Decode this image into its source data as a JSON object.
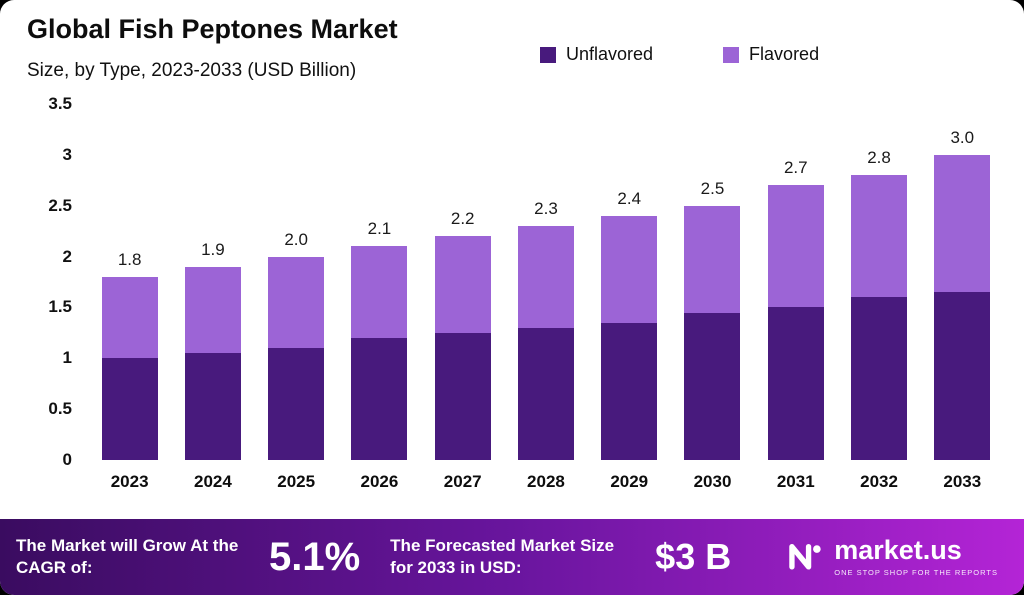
{
  "header": {
    "title": "Global Fish Peptones Market",
    "subtitle": "Size, by Type, 2023-2033 (USD Billion)"
  },
  "legend": [
    {
      "label": "Unflavored",
      "color": "#481a7d"
    },
    {
      "label": "Flavored",
      "color": "#9c64d6"
    }
  ],
  "chart_data": {
    "type": "bar",
    "stacked": true,
    "title": "Global Fish Peptones Market",
    "subtitle": "Size, by Type, 2023-2033 (USD Billion)",
    "xlabel": "",
    "ylabel": "",
    "ylim": [
      0,
      3.5
    ],
    "yticks": [
      0,
      0.5,
      1,
      1.5,
      2,
      2.5,
      3,
      3.5
    ],
    "ytick_labels": [
      "0",
      "0.5",
      "1",
      "1.5",
      "2",
      "2.5",
      "3",
      "3.5"
    ],
    "grid": false,
    "legend_position": "top",
    "categories": [
      "2023",
      "2024",
      "2025",
      "2026",
      "2027",
      "2028",
      "2029",
      "2030",
      "2031",
      "2032",
      "2033"
    ],
    "series": [
      {
        "name": "Unflavored",
        "color": "#481a7d",
        "values": [
          1.0,
          1.05,
          1.1,
          1.2,
          1.25,
          1.3,
          1.35,
          1.45,
          1.5,
          1.6,
          1.65
        ]
      },
      {
        "name": "Flavored",
        "color": "#9c64d6",
        "values": [
          0.8,
          0.85,
          0.9,
          0.9,
          0.95,
          1.0,
          1.05,
          1.05,
          1.2,
          1.2,
          1.35
        ]
      }
    ],
    "totals": [
      1.8,
      1.9,
      2.0,
      2.1,
      2.2,
      2.3,
      2.4,
      2.5,
      2.7,
      2.8,
      3.0
    ]
  },
  "banner": {
    "cagr_label": "The Market will Grow At the CAGR of:",
    "cagr_value": "5.1%",
    "forecast_label": "The Forecasted Market Size for 2033 in USD:",
    "forecast_value": "$3 B",
    "brand": "market.us",
    "brand_tagline": "ONE STOP SHOP FOR THE REPORTS"
  }
}
